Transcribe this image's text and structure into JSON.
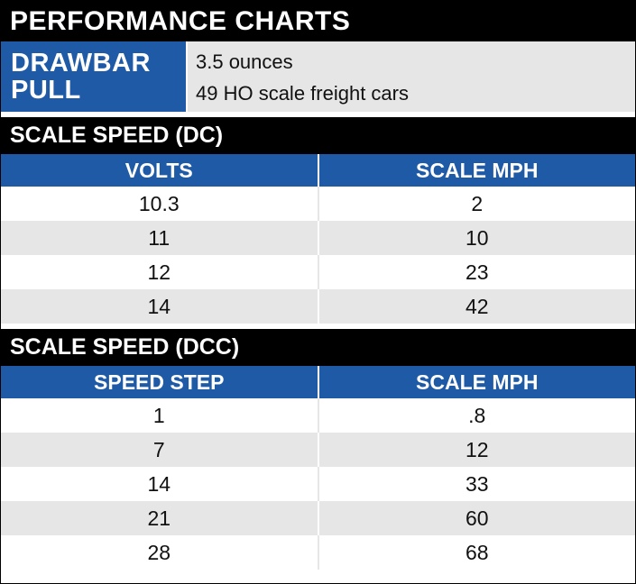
{
  "title": "PERFORMANCE CHARTS",
  "drawbar": {
    "label_line1": "DRAWBAR",
    "label_line2": "PULL",
    "value1": "3.5 ounces",
    "value2": "49 HO scale freight cars"
  },
  "dc": {
    "title": "SCALE SPEED (DC)",
    "headers": [
      "VOLTS",
      "SCALE MPH"
    ],
    "rows": [
      [
        "10.3",
        "2"
      ],
      [
        "11",
        "10"
      ],
      [
        "12",
        "23"
      ],
      [
        "14",
        "42"
      ]
    ]
  },
  "dcc": {
    "title": "SCALE SPEED (DCC)",
    "headers": [
      "SPEED STEP",
      "SCALE MPH"
    ],
    "rows": [
      [
        "1",
        ".8"
      ],
      [
        "7",
        "12"
      ],
      [
        "14",
        "33"
      ],
      [
        "21",
        "60"
      ],
      [
        "28",
        "68"
      ]
    ]
  },
  "colors": {
    "header_blue": "#1f5aa6",
    "shade_gray": "#e6e6e6",
    "bar_black": "#000000"
  }
}
